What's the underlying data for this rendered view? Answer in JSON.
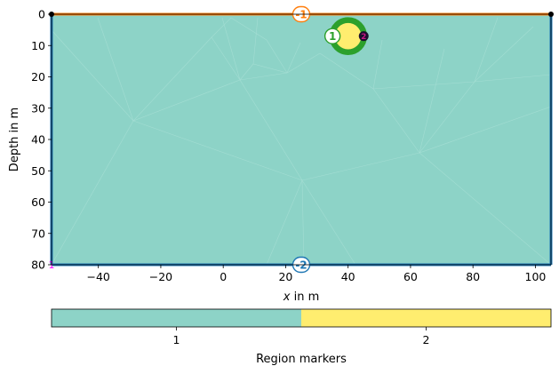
{
  "chart_data": {
    "type": "heatmap",
    "title": "",
    "xlabel": "x in m",
    "xlabel_var": "x",
    "xlabel_rest": " in m",
    "ylabel": "Depth in m",
    "xlim": [
      -55,
      105
    ],
    "ylim": [
      80,
      0
    ],
    "x_ticks": [
      -40,
      -20,
      0,
      20,
      40,
      60,
      80,
      100
    ],
    "x_tick_labels": [
      "−40",
      "−20",
      "0",
      "20",
      "40",
      "60",
      "80",
      "100"
    ],
    "y_ticks": [
      0,
      10,
      20,
      30,
      40,
      50,
      60,
      70,
      80
    ],
    "y_tick_labels": [
      "0",
      "10",
      "20",
      "30",
      "40",
      "50",
      "60",
      "70",
      "80"
    ],
    "grid": false,
    "regions": [
      {
        "marker": 1,
        "color": "#8dd3c7",
        "extent": {
          "x": [
            -55,
            105
          ],
          "depth": [
            0,
            80
          ]
        }
      },
      {
        "marker": 2,
        "color": "#ffed6f",
        "shape": "circle",
        "center": {
          "x": 40,
          "depth": 7
        },
        "radius": 4.5
      }
    ],
    "boundary_colors": {
      "surface": "#ff7f0e",
      "subsurface": "#1f77b4",
      "anomaly_ring": "#2ca02c"
    },
    "markers": [
      {
        "label": "-1",
        "x": 25,
        "depth": 0,
        "color": "#ff7f0e"
      },
      {
        "label": "1",
        "x": 35,
        "depth": 7,
        "color": "#2ca02c"
      },
      {
        "label": "2",
        "x": 45,
        "depth": 7,
        "color": "#8b0052"
      },
      {
        "label": "-2",
        "x": 25,
        "depth": 80,
        "color": "#1f77b4"
      },
      {
        "label": "1",
        "x": -55,
        "depth": 80,
        "color": "#ff00ff"
      }
    ],
    "colorbar": {
      "label": "Region markers",
      "entries": [
        {
          "label": "1",
          "color": "#8dd3c7"
        },
        {
          "label": "2",
          "color": "#ffed6f"
        }
      ]
    }
  }
}
